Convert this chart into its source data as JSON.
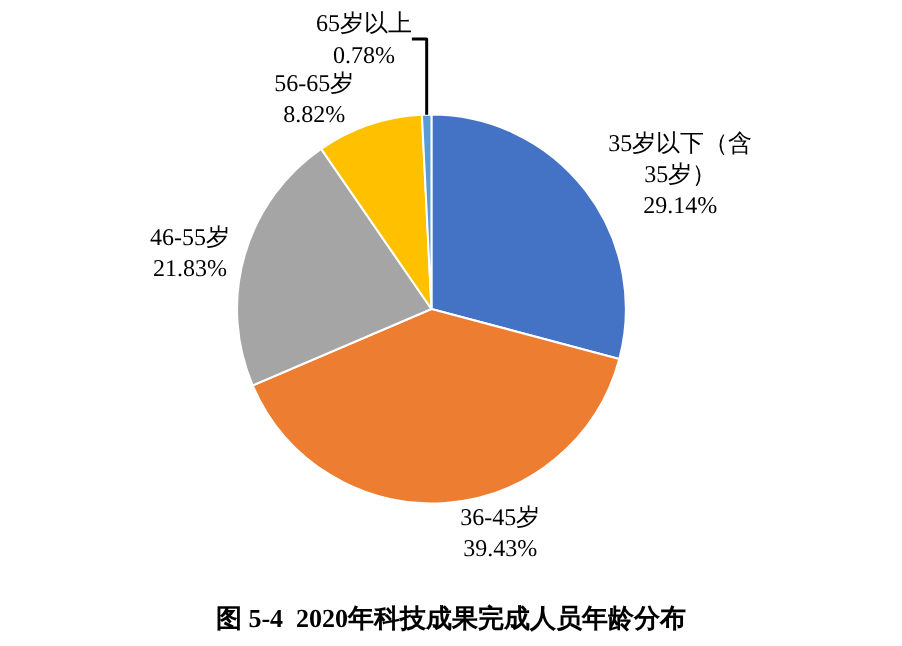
{
  "chart_data": {
    "type": "pie",
    "title": "图 5-4  2020年科技成果完成人员年龄分布",
    "categories": [
      "35岁以下（含35岁）",
      "36-45岁",
      "46-55岁",
      "56-65岁",
      "65岁以上"
    ],
    "values": [
      29.14,
      39.43,
      21.83,
      8.82,
      0.78
    ],
    "value_labels": [
      "29.14%",
      "39.43%",
      "21.83%",
      "8.82%",
      "0.78%"
    ],
    "colors": [
      "#4472c4",
      "#ed7d31",
      "#a5a5a5",
      "#ffc000",
      "#5b9bd5"
    ],
    "legend": false
  }
}
